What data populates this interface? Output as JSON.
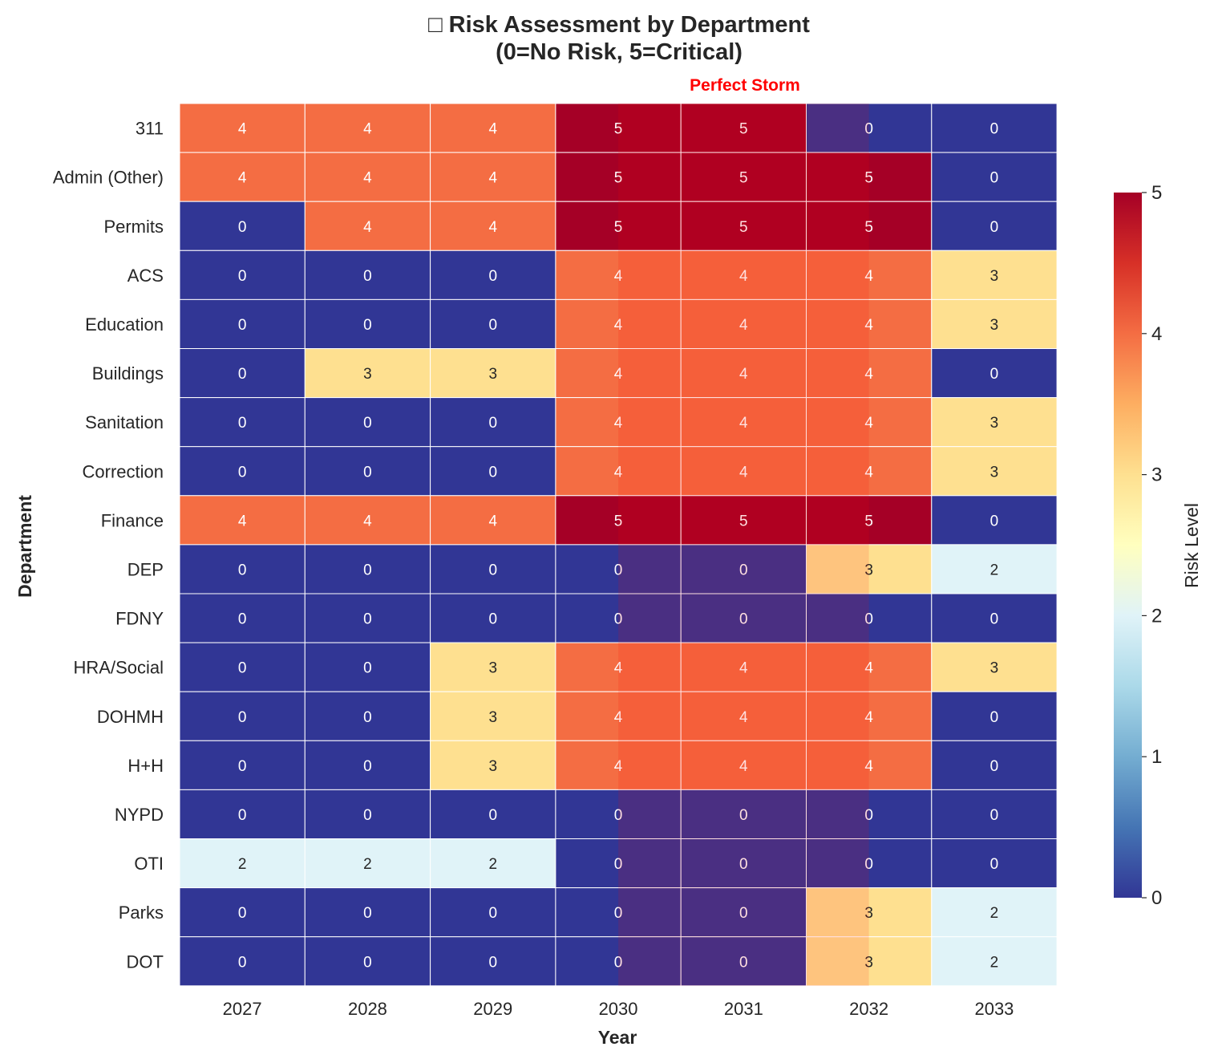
{
  "chart_data": {
    "type": "heatmap",
    "title_line1": "□ Risk Assessment by Department",
    "title_line2": "(0=No Risk, 5=Critical)",
    "annotation": "Perfect Storm",
    "xlabel": "Year",
    "ylabel": "Department",
    "colorbar_label": "Risk Level",
    "colorbar_ticks": [
      "0",
      "1",
      "2",
      "3",
      "4",
      "5"
    ],
    "value_range": [
      0,
      5
    ],
    "highlight_years": [
      "2030",
      "2031",
      "2032"
    ],
    "highlight_color": "#ff0000",
    "colormap": "RdYlBu_r",
    "x": [
      "2027",
      "2028",
      "2029",
      "2030",
      "2031",
      "2032",
      "2033"
    ],
    "y": [
      "311",
      "Admin (Other)",
      "Permits",
      "ACS",
      "Education",
      "Buildings",
      "Sanitation",
      "Correction",
      "Finance",
      "DEP",
      "FDNY",
      "HRA/Social",
      "DOHMH",
      "H+H",
      "NYPD",
      "OTI",
      "Parks",
      "DOT"
    ],
    "values": [
      [
        4,
        4,
        4,
        5,
        5,
        0,
        0
      ],
      [
        4,
        4,
        4,
        5,
        5,
        5,
        0
      ],
      [
        0,
        4,
        4,
        5,
        5,
        5,
        0
      ],
      [
        0,
        0,
        0,
        4,
        4,
        4,
        3
      ],
      [
        0,
        0,
        0,
        4,
        4,
        4,
        3
      ],
      [
        0,
        3,
        3,
        4,
        4,
        4,
        0
      ],
      [
        0,
        0,
        0,
        4,
        4,
        4,
        3
      ],
      [
        0,
        0,
        0,
        4,
        4,
        4,
        3
      ],
      [
        4,
        4,
        4,
        5,
        5,
        5,
        0
      ],
      [
        0,
        0,
        0,
        0,
        0,
        3,
        2
      ],
      [
        0,
        0,
        0,
        0,
        0,
        0,
        0
      ],
      [
        0,
        0,
        3,
        4,
        4,
        4,
        3
      ],
      [
        0,
        0,
        3,
        4,
        4,
        4,
        0
      ],
      [
        0,
        0,
        3,
        4,
        4,
        4,
        0
      ],
      [
        0,
        0,
        0,
        0,
        0,
        0,
        0
      ],
      [
        2,
        2,
        2,
        0,
        0,
        0,
        0
      ],
      [
        0,
        0,
        0,
        0,
        0,
        3,
        2
      ],
      [
        0,
        0,
        0,
        0,
        0,
        3,
        2
      ]
    ]
  }
}
